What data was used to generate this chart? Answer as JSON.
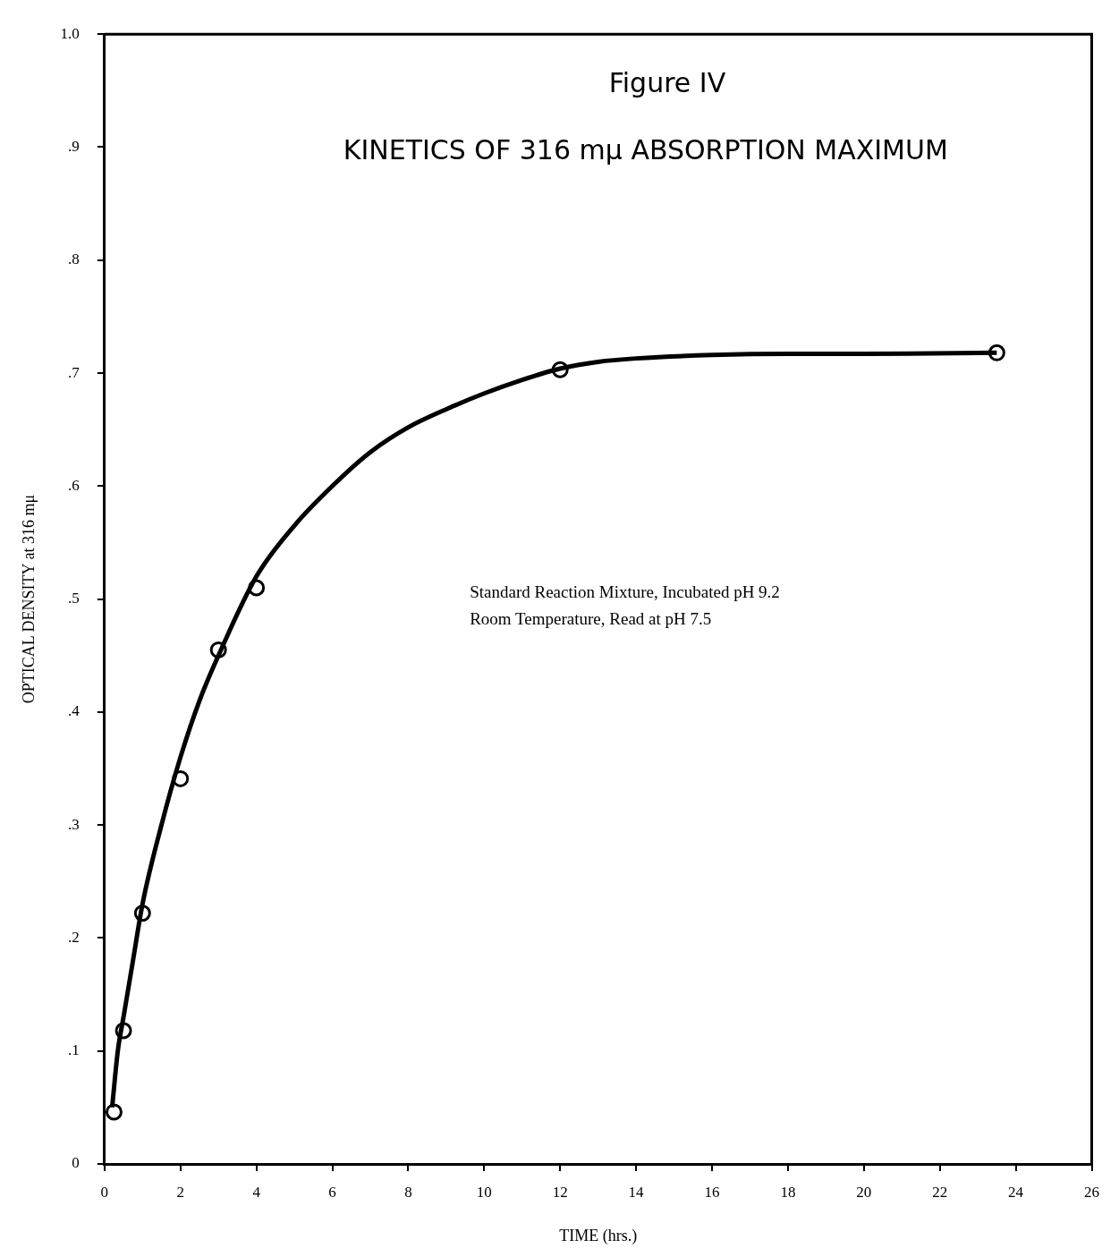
{
  "chart_data": {
    "type": "scatter",
    "title": "Figure IV",
    "subtitle": "KINETICS OF 316 mμ ABSORPTION MAXIMUM",
    "xlabel": "TIME (hrs.)",
    "ylabel": "OPTICAL DENSITY at 316 mμ",
    "annotations": [
      "Standard Reaction Mixture, Incubated pH 9.2",
      "Room Temperature, Read at pH 7.5"
    ],
    "xlim": [
      0,
      26
    ],
    "xticks": [
      0,
      2,
      4,
      6,
      8,
      10,
      12,
      14,
      16,
      18,
      20,
      22,
      24,
      26
    ],
    "ylim": [
      0,
      1
    ],
    "yticks": [
      0,
      {
        "value": 0.1,
        "label": ".1"
      },
      {
        "value": 0.2,
        "label": ".2"
      },
      {
        "value": 0.3,
        "label": ".3"
      },
      {
        "value": 0.4,
        "label": ".4"
      },
      {
        "value": 0.5,
        "label": ".5"
      },
      {
        "value": 0.6,
        "label": ".6"
      },
      {
        "value": 0.7,
        "label": ".7"
      },
      {
        "value": 0.8,
        "label": ".8"
      },
      {
        "value": 0.9,
        "label": ".9"
      },
      {
        "value": 1,
        "label": "1.0"
      }
    ],
    "grid": false,
    "legend": false,
    "series": [
      {
        "type": "line",
        "color": "#000000",
        "marker": "none",
        "x": [
          0.2,
          0.35,
          0.5,
          0.75,
          1,
          1.5,
          2,
          2.5,
          3,
          4,
          5,
          6,
          7,
          8,
          9,
          10,
          11,
          12,
          13,
          14,
          16,
          18,
          20,
          23.5
        ],
        "values": [
          0.05,
          0.1,
          0.13,
          0.18,
          0.23,
          0.3,
          0.36,
          0.41,
          0.45,
          0.52,
          0.565,
          0.6,
          0.63,
          0.652,
          0.668,
          0.682,
          0.694,
          0.704,
          0.71,
          0.713,
          0.716,
          0.717,
          0.717,
          0.718
        ]
      },
      {
        "type": "scatter",
        "color": "#000000",
        "marker": "circle",
        "x": [
          0.25,
          0.5,
          1,
          2,
          3,
          4,
          12,
          23.5
        ],
        "values": [
          0.046,
          0.118,
          0.222,
          0.341,
          0.455,
          0.51,
          0.703,
          0.718
        ]
      }
    ]
  }
}
